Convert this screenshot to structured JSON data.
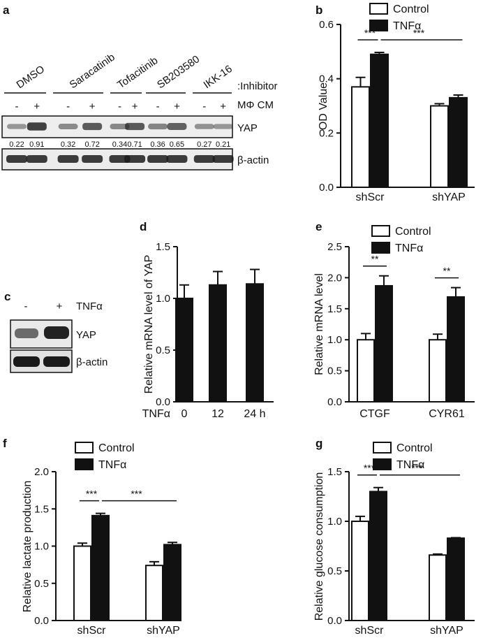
{
  "panel_letters": {
    "a": "a",
    "b": "b",
    "c": "c",
    "d": "d",
    "e": "e",
    "f": "f",
    "g": "g"
  },
  "blot_a": {
    "inhibitors": [
      "DMSO",
      "Saracatinib",
      "Tofacitinib",
      "SB203580",
      "IKK-16"
    ],
    "inhibitor_label": ":Inhibitor",
    "treatment_label": "MΦ CM",
    "signs": [
      "-",
      "+",
      "-",
      "+",
      "-",
      "+",
      "-",
      "+",
      "-",
      "+"
    ],
    "quant": [
      "0.22",
      "0.91",
      "0.32",
      "0.72",
      "0.34",
      "0.71",
      "0.36",
      "0.65",
      "0.27",
      "0.21"
    ],
    "protein_1": "YAP",
    "protein_2": "β-actin"
  },
  "blot_c": {
    "signs": [
      "-",
      "+"
    ],
    "treatment_label": "TNFα",
    "protein_1": "YAP",
    "protein_2": "β-actin"
  },
  "chart_data": [
    {
      "panel": "b",
      "type": "bar",
      "categories": [
        "shScr",
        "shYAP"
      ],
      "series": [
        {
          "name": "Control",
          "values": [
            0.37,
            0.3
          ],
          "errors": [
            0.035,
            0.008
          ]
        },
        {
          "name": "TNFα",
          "values": [
            0.49,
            0.33
          ],
          "errors": [
            0.007,
            0.01
          ]
        }
      ],
      "ylabel": "OD Value",
      "ylim": [
        0,
        0.6
      ],
      "yticks": [
        "0.0",
        "0.2",
        "0.4",
        "0.6"
      ],
      "significance": [
        "***",
        "***"
      ],
      "legend": "top"
    },
    {
      "panel": "d",
      "type": "bar",
      "categories": [
        "0",
        "12",
        "24 h"
      ],
      "x_prefix": "TNFα",
      "series": [
        {
          "name": "",
          "values": [
            1.0,
            1.13,
            1.14
          ],
          "errors": [
            0.13,
            0.13,
            0.14
          ]
        }
      ],
      "ylabel": "Relative mRNA level of YAP",
      "ylim": [
        0,
        1.5
      ],
      "yticks": [
        "0.0",
        "0.5",
        "1.0",
        "1.5"
      ]
    },
    {
      "panel": "e",
      "type": "bar",
      "categories": [
        "CTGF",
        "CYR61"
      ],
      "series": [
        {
          "name": "Control",
          "values": [
            1.0,
            1.0
          ],
          "errors": [
            0.1,
            0.09
          ]
        },
        {
          "name": "TNFα",
          "values": [
            1.87,
            1.69
          ],
          "errors": [
            0.16,
            0.15
          ]
        }
      ],
      "ylabel": "Relative mRNA level",
      "ylim": [
        0,
        2.5
      ],
      "yticks": [
        "0.0",
        "0.5",
        "1.0",
        "1.5",
        "2.0",
        "2.5"
      ],
      "significance": [
        "**",
        "**"
      ],
      "legend": "top"
    },
    {
      "panel": "f",
      "type": "bar",
      "categories": [
        "shScr",
        "shYAP"
      ],
      "series": [
        {
          "name": "Control",
          "values": [
            1.0,
            0.74
          ],
          "errors": [
            0.04,
            0.05
          ]
        },
        {
          "name": "TNFα",
          "values": [
            1.41,
            1.02
          ],
          "errors": [
            0.03,
            0.03
          ]
        }
      ],
      "ylabel": "Relative lactate production",
      "ylim": [
        0,
        2.0
      ],
      "yticks": [
        "0.0",
        "0.5",
        "1.0",
        "1.5",
        "2.0"
      ],
      "significance": [
        "***",
        "***"
      ],
      "legend": "top"
    },
    {
      "panel": "g",
      "type": "bar",
      "categories": [
        "shScr",
        "shYAP"
      ],
      "series": [
        {
          "name": "Control",
          "values": [
            1.0,
            0.66
          ],
          "errors": [
            0.05,
            0.01
          ]
        },
        {
          "name": "TNFα",
          "values": [
            1.3,
            0.83
          ],
          "errors": [
            0.04,
            0.005
          ]
        }
      ],
      "ylabel": "Relative glucose consumption",
      "ylim": [
        0,
        1.5
      ],
      "yticks": [
        "0.0",
        "0.5",
        "1.0",
        "1.5"
      ],
      "significance": [
        "***",
        "***"
      ],
      "legend": "top"
    }
  ]
}
